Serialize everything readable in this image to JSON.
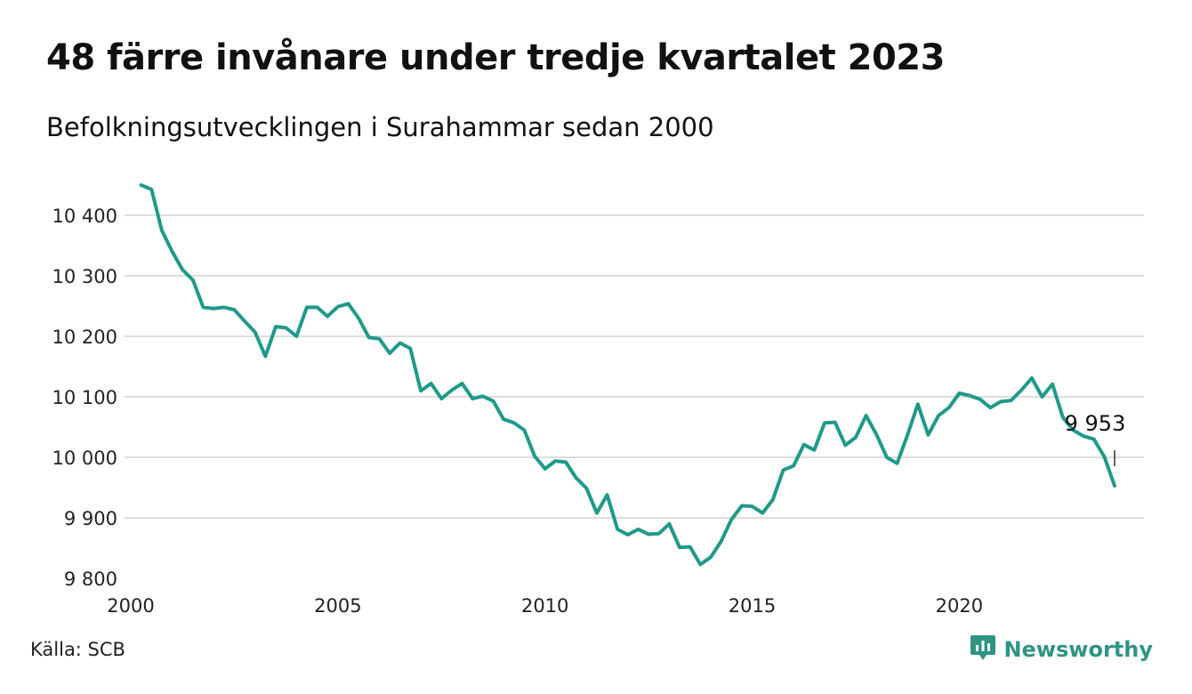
{
  "header": {
    "title": "48 färre invånare under tredje kvartalet 2023",
    "subtitle": "Befolkningsutvecklingen i Surahammar sedan 2000"
  },
  "footer": {
    "source": "Källa: SCB",
    "brand": "Newsworthy"
  },
  "colors": {
    "line": "#1f9a8a",
    "grid": "#dddddd",
    "brand": "#2f9484"
  },
  "icons": {
    "brand_logo": "newsworthy-logo-icon"
  },
  "chart_data": {
    "type": "line",
    "title": "48 färre invånare under tredje kvartalet 2023",
    "subtitle": "Befolkningsutvecklingen i Surahammar sedan 2000",
    "x_ticks": [
      2000,
      2005,
      2010,
      2015,
      2020
    ],
    "x_tick_labels": [
      "2000",
      "2005",
      "2010",
      "2015",
      "2020"
    ],
    "y_ticks": [
      9800,
      9900,
      10000,
      10100,
      10200,
      10300,
      10400
    ],
    "y_tick_labels": [
      "9 800",
      "9 900",
      "10 000",
      "10 100",
      "10 200",
      "10 300",
      "10 400"
    ],
    "xlim": [
      2000,
      2024
    ],
    "ylim": [
      9800,
      10450
    ],
    "grid": "horizontal",
    "last_value_label": "9 953",
    "series": [
      {
        "x": [
          2000.25,
          2000.5,
          2000.75,
          2001,
          2001.25,
          2001.5,
          2001.75,
          2002,
          2002.25,
          2002.5,
          2002.75,
          2003,
          2003.25,
          2003.5,
          2003.75,
          2004,
          2004.25,
          2004.5,
          2004.75,
          2005,
          2005.25,
          2005.5,
          2005.75,
          2006,
          2006.25,
          2006.5,
          2006.75,
          2007,
          2007.25,
          2007.5,
          2007.75,
          2008,
          2008.25,
          2008.5,
          2008.75,
          2009,
          2009.25,
          2009.5,
          2009.75,
          2010,
          2010.25,
          2010.5,
          2010.75,
          2011,
          2011.25,
          2011.5,
          2011.75,
          2012,
          2012.25,
          2012.5,
          2012.75,
          2013,
          2013.25,
          2013.5,
          2013.75,
          2014,
          2014.25,
          2014.5,
          2014.75,
          2015,
          2015.25,
          2015.5,
          2015.75,
          2016,
          2016.25,
          2016.5,
          2016.75,
          2017,
          2017.25,
          2017.5,
          2017.75,
          2018,
          2018.25,
          2018.5,
          2018.75,
          2019,
          2019.25,
          2019.5,
          2019.75,
          2020,
          2020.25,
          2020.5,
          2020.75,
          2021,
          2021.25,
          2021.5,
          2021.75,
          2022,
          2022.25,
          2022.5,
          2022.75,
          2023,
          2023.25,
          2023.5,
          2023.75
        ],
        "values": [
          10450,
          10443,
          10375,
          10340,
          10310,
          10293,
          10248,
          10246,
          10248,
          10244,
          10225,
          10207,
          10167,
          10216,
          10214,
          10200,
          10248,
          10248,
          10233,
          10249,
          10254,
          10230,
          10198,
          10196,
          10172,
          10189,
          10180,
          10110,
          10122,
          10097,
          10111,
          10122,
          10097,
          10101,
          10093,
          10063,
          10057,
          10045,
          10002,
          9981,
          9994,
          9992,
          9966,
          9949,
          9908,
          9938,
          9881,
          9872,
          9881,
          9873,
          9874,
          9890,
          9851,
          9852,
          9823,
          9835,
          9861,
          9897,
          9920,
          9919,
          9908,
          9930,
          9979,
          9986,
          10021,
          10012,
          10057,
          10058,
          10020,
          10033,
          10069,
          10038,
          10000,
          9990,
          10037,
          10088,
          10037,
          10069,
          10082,
          10106,
          10102,
          10096,
          10082,
          10092,
          10094,
          10111,
          10131,
          10100,
          10121,
          10066,
          10045,
          10035,
          10030,
          10001,
          9953
        ]
      }
    ]
  }
}
